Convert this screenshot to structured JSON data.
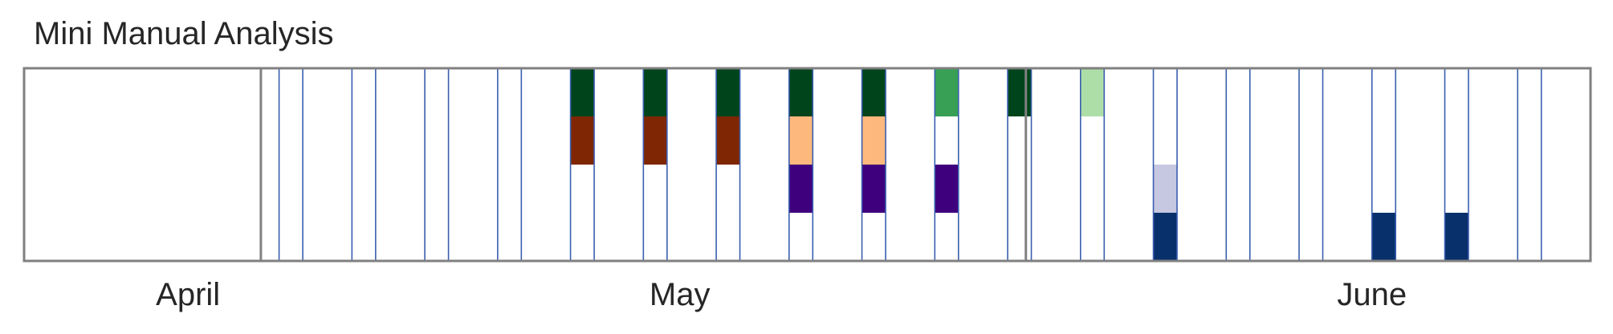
{
  "chart_data": {
    "type": "heatmap",
    "title": "Mini Manual Analysis",
    "xlabel": "",
    "ylabel": "",
    "x_axis": "date",
    "x_range": [
      "2024-03-29",
      "2024-06-23"
    ],
    "month_ticks": [
      {
        "label": "April",
        "date": "2024-04-07"
      },
      {
        "label": "May",
        "date": "2024-05-04"
      },
      {
        "label": "June",
        "date": "2024-06-11"
      }
    ],
    "rows": 4,
    "grid": false,
    "divider_dates": [
      "2024-04-11",
      "2024-05-23"
    ],
    "columns": [
      {
        "date": "2024-04-12",
        "cells": [
          null,
          null,
          null,
          null
        ]
      },
      {
        "date": "2024-04-16",
        "cells": [
          null,
          null,
          null,
          null
        ]
      },
      {
        "date": "2024-04-20",
        "cells": [
          null,
          null,
          null,
          null
        ]
      },
      {
        "date": "2024-04-24",
        "cells": [
          null,
          null,
          null,
          null
        ]
      },
      {
        "date": "2024-04-28",
        "cells": [
          "#00441b",
          "#7f2704",
          null,
          null
        ]
      },
      {
        "date": "2024-05-02",
        "cells": [
          "#00441b",
          "#7f2704",
          null,
          null
        ]
      },
      {
        "date": "2024-05-06",
        "cells": [
          "#00441b",
          "#7f2704",
          null,
          null
        ]
      },
      {
        "date": "2024-05-10",
        "cells": [
          "#00441b",
          "#fdb97d",
          "#3f007d",
          null
        ]
      },
      {
        "date": "2024-05-14",
        "cells": [
          "#00441b",
          "#fdb97d",
          "#3f007d",
          null
        ]
      },
      {
        "date": "2024-05-18",
        "cells": [
          "#37a055",
          null,
          "#3f007d",
          null
        ]
      },
      {
        "date": "2024-05-22",
        "cells": [
          "#00441b",
          null,
          null,
          null
        ]
      },
      {
        "date": "2024-05-26",
        "cells": [
          "#aedea7",
          null,
          null,
          null
        ]
      },
      {
        "date": "2024-05-30",
        "cells": [
          null,
          null,
          "#c6c7e1",
          "#08306b"
        ]
      },
      {
        "date": "2024-06-03",
        "cells": [
          null,
          null,
          null,
          null
        ]
      },
      {
        "date": "2024-06-07",
        "cells": [
          null,
          null,
          null,
          null
        ]
      },
      {
        "date": "2024-06-11",
        "cells": [
          null,
          null,
          null,
          "#08306b"
        ]
      },
      {
        "date": "2024-06-15",
        "cells": [
          null,
          null,
          null,
          "#08306b"
        ]
      },
      {
        "date": "2024-06-19",
        "cells": [
          null,
          null,
          null,
          null
        ]
      }
    ],
    "colors": {
      "column_border": "#3a5fb0",
      "frame": "#808080",
      "divider": "#808080",
      "text": "#262626"
    }
  }
}
